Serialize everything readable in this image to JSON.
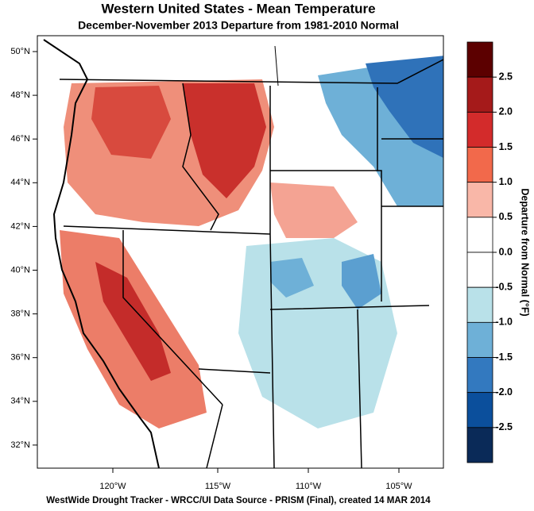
{
  "map": {
    "title": "Western United States - Mean Temperature",
    "subtitle": "December-November 2013  Departure from 1981-2010 Normal",
    "lat_labels": [
      "50°N",
      "48°N",
      "46°N",
      "44°N",
      "42°N",
      "40°N",
      "38°N",
      "36°N",
      "34°N",
      "32°N"
    ],
    "lon_labels": [
      "120°W",
      "115°W",
      "110°W",
      "105°W"
    ],
    "footer": "WestWide Drought Tracker - WRCC/UI  Data Source - PRISM (Final), created 14 MAR 2014",
    "legend": {
      "title": "Departure from Normal (°F)",
      "colors": [
        "#5c0000",
        "#a51a1a",
        "#d32b2b",
        "#f2694b",
        "#f9b7a8",
        "#ffffff",
        "#ffffff",
        "#b9e1e9",
        "#6eb0d7",
        "#3379bf",
        "#0b4f9c",
        "#0a2a58"
      ],
      "ticks": [
        2.5,
        {
          "value": 2,
          "label": "2.0"
        },
        1.5,
        {
          "value": 1,
          "label": "1.0"
        },
        0.5,
        {
          "value": 0,
          "label": "0.0"
        },
        -0.5,
        {
          "value": -1,
          "label": "-1.0"
        },
        -1.5,
        {
          "value": -2,
          "label": "-2.0"
        },
        -2.5
      ]
    }
  }
}
